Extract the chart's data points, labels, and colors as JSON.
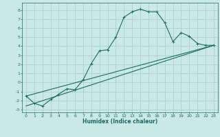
{
  "xlabel": "Humidex (Indice chaleur)",
  "xlim": [
    -0.5,
    23.5
  ],
  "ylim": [
    -3.3,
    8.8
  ],
  "yticks": [
    -3,
    -2,
    -1,
    0,
    1,
    2,
    3,
    4,
    5,
    6,
    7,
    8
  ],
  "xticks": [
    0,
    1,
    2,
    3,
    4,
    5,
    6,
    7,
    8,
    9,
    10,
    11,
    12,
    13,
    14,
    15,
    16,
    17,
    18,
    19,
    20,
    21,
    22,
    23
  ],
  "bg_color": "#c9e8e6",
  "grid_color": "#aacfcf",
  "line_color": "#1a6b60",
  "line1_x": [
    0,
    1,
    2,
    3,
    4,
    5,
    6,
    7,
    8,
    9,
    10,
    11,
    12,
    13,
    14,
    15,
    16,
    17,
    18,
    19,
    20,
    21,
    22,
    23
  ],
  "line1_y": [
    -1.5,
    -2.3,
    -2.6,
    -1.9,
    -1.3,
    -0.7,
    -0.8,
    0.3,
    2.1,
    3.5,
    3.6,
    5.0,
    7.2,
    7.8,
    8.1,
    7.8,
    7.8,
    6.6,
    4.5,
    5.5,
    5.1,
    4.3,
    4.1,
    4.1
  ],
  "line2_x": [
    0,
    23
  ],
  "line2_y": [
    -1.5,
    4.1
  ],
  "line3_x": [
    0,
    23
  ],
  "line3_y": [
    -2.6,
    4.1
  ]
}
